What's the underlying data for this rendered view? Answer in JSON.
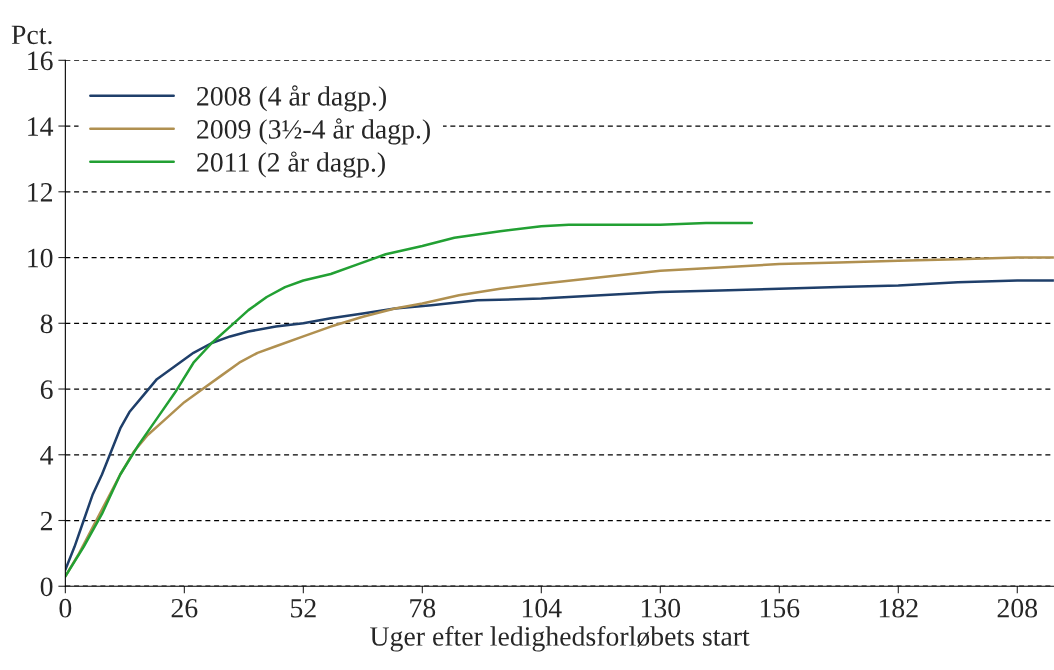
{
  "chart_data": {
    "type": "line",
    "ylabel": "Pct.",
    "xlabel": "Uger efter ledighedsforløbets start",
    "xlim": [
      0,
      216
    ],
    "xticks": [
      0,
      26,
      52,
      78,
      104,
      130,
      156,
      182,
      208
    ],
    "ylim": [
      0,
      16
    ],
    "yticks": [
      0,
      2,
      4,
      6,
      8,
      10,
      12,
      14,
      16
    ],
    "grid": "y",
    "legend": "top left",
    "line_style": "solid",
    "marker": "none",
    "series": [
      {
        "name": "2008 (4 år dagp.)",
        "color": "#1f3f6a",
        "x": [
          0,
          2,
          4,
          6,
          8,
          10,
          12,
          14,
          17,
          20,
          24,
          28,
          32,
          36,
          40,
          46,
          52,
          58,
          65,
          72,
          80,
          90,
          104,
          117,
          130,
          143,
          156,
          169,
          182,
          195,
          208,
          216
        ],
        "values": [
          0.5,
          1.2,
          2.0,
          2.8,
          3.4,
          4.1,
          4.8,
          5.3,
          5.8,
          6.3,
          6.7,
          7.1,
          7.4,
          7.6,
          7.75,
          7.9,
          8.0,
          8.15,
          8.3,
          8.45,
          8.55,
          8.7,
          8.75,
          8.85,
          8.95,
          9.0,
          9.05,
          9.1,
          9.15,
          9.25,
          9.3,
          9.3
        ]
      },
      {
        "name": "2009 (3½-4 år dagp.)",
        "color": "#b09050",
        "x": [
          0,
          3,
          6,
          9,
          12,
          15,
          18,
          22,
          26,
          30,
          34,
          38,
          42,
          46,
          52,
          58,
          65,
          72,
          78,
          86,
          95,
          104,
          117,
          130,
          143,
          156,
          169,
          182,
          195,
          208,
          216
        ],
        "values": [
          0.3,
          1.0,
          1.8,
          2.6,
          3.4,
          4.1,
          4.6,
          5.1,
          5.6,
          6.0,
          6.4,
          6.8,
          7.1,
          7.3,
          7.6,
          7.9,
          8.2,
          8.45,
          8.6,
          8.85,
          9.05,
          9.2,
          9.4,
          9.6,
          9.7,
          9.8,
          9.85,
          9.9,
          9.95,
          10.0,
          10.0
        ]
      },
      {
        "name": "2011 (2 år dagp.)",
        "color": "#22a033",
        "x": [
          0,
          4,
          8,
          12,
          16,
          20,
          24,
          28,
          32,
          36,
          40,
          44,
          48,
          52,
          58,
          64,
          70,
          78,
          85,
          95,
          104,
          110,
          120,
          130,
          140,
          150
        ],
        "values": [
          0.3,
          1.2,
          2.2,
          3.4,
          4.3,
          5.1,
          5.9,
          6.8,
          7.4,
          7.9,
          8.4,
          8.8,
          9.1,
          9.3,
          9.5,
          9.8,
          10.1,
          10.35,
          10.6,
          10.8,
          10.95,
          11.0,
          11.0,
          11.0,
          11.05,
          11.05
        ]
      }
    ]
  }
}
